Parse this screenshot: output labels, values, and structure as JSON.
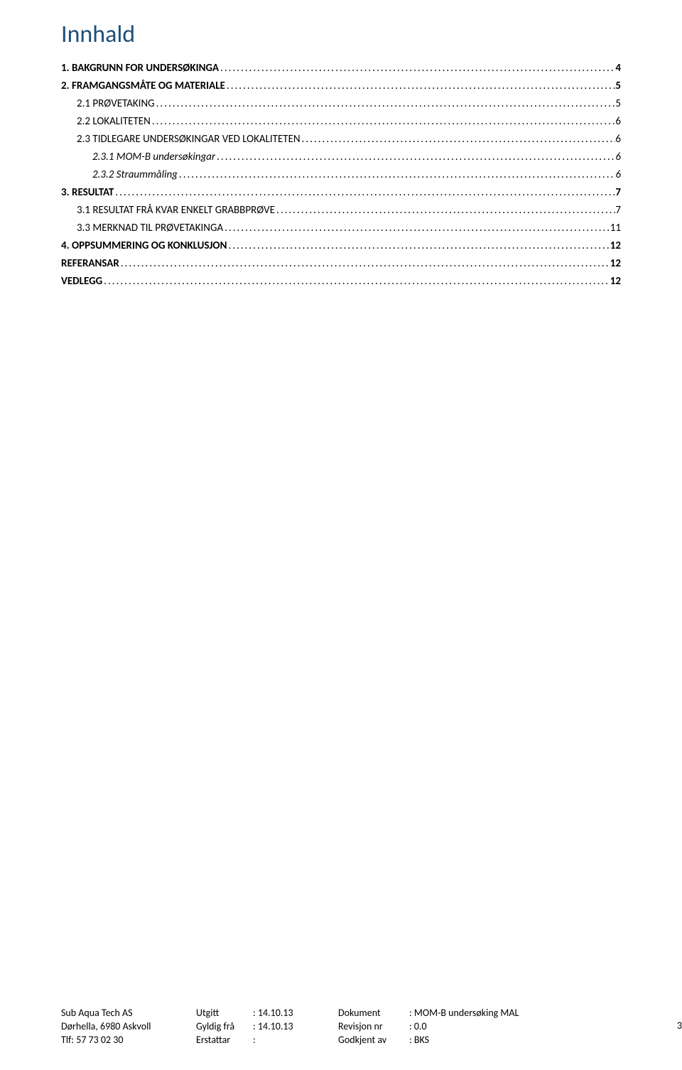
{
  "title": {
    "text": "Innhald",
    "color": "#1f4e79"
  },
  "toc": [
    {
      "label": "1. BAKGRUNN FOR UNDERSØKINGA",
      "page": "4",
      "indent": 0,
      "style": "bold"
    },
    {
      "label": "2. FRAMGANGSMÅTE OG MATERIALE",
      "page": "5",
      "indent": 0,
      "style": "bold"
    },
    {
      "label": "2.1 PRØVETAKING",
      "page": "5",
      "indent": 1,
      "style": "normal"
    },
    {
      "label": "2.2 LOKALITETEN",
      "page": "6",
      "indent": 1,
      "style": "normal"
    },
    {
      "label": "2.3 TIDLEGARE UNDERSØKINGAR VED LOKALITETEN",
      "page": "6",
      "indent": 1,
      "style": "normal"
    },
    {
      "label": "2.3.1 MOM-B undersøkingar",
      "page": "6",
      "indent": 2,
      "style": "italic"
    },
    {
      "label": "2.3.2 Straummåling",
      "page": "6",
      "indent": 2,
      "style": "italic"
    },
    {
      "label": "3. RESULTAT",
      "page": "7",
      "indent": 0,
      "style": "bold"
    },
    {
      "label": "3.1 RESULTAT FRÅ KVAR ENKELT GRABBPRØVE",
      "page": "7",
      "indent": 1,
      "style": "normal"
    },
    {
      "label": "3.3 MERKNAD TIL PRØVETAKINGA",
      "page": "11",
      "indent": 1,
      "style": "normal"
    },
    {
      "label": "4. OPPSUMMERING OG KONKLUSJON",
      "page": "12",
      "indent": 0,
      "style": "bold"
    },
    {
      "label": "REFERANSAR",
      "page": "12",
      "indent": 0,
      "style": "bold"
    },
    {
      "label": "VEDLEGG",
      "page": "12",
      "indent": 0,
      "style": "bold"
    }
  ],
  "footer": {
    "company": "Sub Aqua Tech AS",
    "address": "Dørhella, 6980 Askvoll",
    "phone": "Tlf: 57 73 02 30",
    "utgitt_label": "Utgitt",
    "utgitt_value": ": 14.10.13",
    "gyldig_label": "Gyldig frå",
    "gyldig_value": ": 14.10.13",
    "erstattar_label": "Erstattar",
    "erstattar_value": ":",
    "dokument_label": "Dokument",
    "dokument_value": ": MOM-B undersøking MAL",
    "revisjon_label": "Revisjon nr",
    "revisjon_value": ": 0.0",
    "godkjent_label": "Godkjent av",
    "godkjent_value": ": BKS"
  },
  "page_number": "3"
}
